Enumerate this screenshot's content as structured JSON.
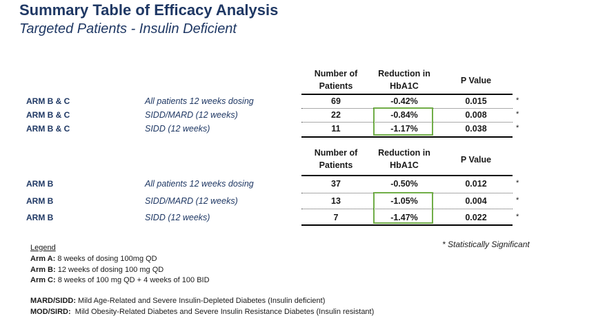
{
  "title": "Summary Table of Efficacy Analysis",
  "subtitle": "Targeted Patients - Insulin Deficient",
  "headers": {
    "patients_1": "Number of",
    "patients_2": "Patients",
    "reduction_1": "Reduction in",
    "reduction_2": "HbA1C",
    "pvalue": "P Value"
  },
  "table1": {
    "rows": [
      {
        "arm": "ARM B & C",
        "desc": "All patients 12 weeks dosing",
        "patients": "69",
        "reduction": "-0.42%",
        "pvalue": "0.015",
        "sig": "*"
      },
      {
        "arm": "ARM B & C",
        "desc": "SIDD/MARD (12 weeks)",
        "patients": "22",
        "reduction": "-0.84%",
        "pvalue": "0.008",
        "sig": "*"
      },
      {
        "arm": "ARM B & C",
        "desc": "SIDD (12 weeks)",
        "patients": "11",
        "reduction": "-1.17%",
        "pvalue": "0.038",
        "sig": "*"
      }
    ]
  },
  "table2": {
    "rows": [
      {
        "arm": "ARM B",
        "desc": "All patients 12 weeks dosing",
        "patients": "37",
        "reduction": "-0.50%",
        "pvalue": "0.012",
        "sig": "*"
      },
      {
        "arm": "ARM B",
        "desc": "SIDD/MARD (12 weeks)",
        "patients": "13",
        "reduction": "-1.05%",
        "pvalue": "0.004",
        "sig": "*"
      },
      {
        "arm": "ARM B",
        "desc": "SIDD (12 weeks)",
        "patients": "7",
        "reduction": "-1.47%",
        "pvalue": "0.022",
        "sig": "*"
      }
    ]
  },
  "significance_note": "* Statistically Significant",
  "legend": {
    "title": "Legend",
    "items": [
      {
        "label": "Arm A:",
        "text": " 8 weeks of dosing 100mg QD"
      },
      {
        "label": "Arm B:",
        "text": " 12 weeks of dosing 100 mg QD"
      },
      {
        "label": "Arm C:",
        "text": " 8 weeks of 100 mg QD + 4 weeks of 100 BID"
      }
    ],
    "definitions": [
      {
        "label": "MARD/SIDD:",
        "text": " Mild Age-Related and Severe Insulin-Depleted Diabetes (Insulin deficient)"
      },
      {
        "label": "MOD/SIRD:",
        "text": "  Mild Obesity-Related Diabetes and Severe Insulin Resistance Diabetes (Insulin resistant)"
      }
    ]
  },
  "colors": {
    "title": "#1f3864",
    "highlight_box": "#70ad47"
  }
}
